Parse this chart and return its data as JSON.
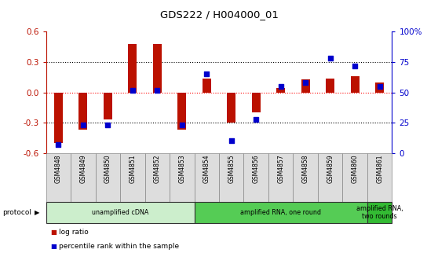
{
  "title": "GDS222 / H004000_01",
  "samples": [
    "GSM4848",
    "GSM4849",
    "GSM4850",
    "GSM4851",
    "GSM4852",
    "GSM4853",
    "GSM4854",
    "GSM4855",
    "GSM4856",
    "GSM4857",
    "GSM4858",
    "GSM4859",
    "GSM4860",
    "GSM4861"
  ],
  "log_ratio": [
    -0.5,
    -0.37,
    -0.27,
    0.48,
    0.48,
    -0.37,
    0.14,
    -0.3,
    -0.2,
    0.04,
    0.13,
    0.14,
    0.16,
    0.1
  ],
  "percentile": [
    7,
    23,
    23,
    52,
    52,
    23,
    65,
    10,
    28,
    55,
    58,
    78,
    72,
    55
  ],
  "ylim_left": [
    -0.6,
    0.6
  ],
  "ylim_right": [
    0,
    100
  ],
  "bar_color": "#bb1100",
  "dot_color": "#0000cc",
  "protocol_groups": [
    {
      "label": "unamplified cDNA",
      "start": 0,
      "end": 5,
      "color": "#cceecc"
    },
    {
      "label": "amplified RNA, one round",
      "start": 6,
      "end": 12,
      "color": "#55cc55"
    },
    {
      "label": "amplified RNA,\ntwo rounds",
      "start": 13,
      "end": 13,
      "color": "#33bb33"
    }
  ],
  "left_yticks": [
    -0.6,
    -0.3,
    0.0,
    0.3,
    0.6
  ],
  "right_yticks": [
    0,
    25,
    50,
    75,
    100
  ],
  "right_yticklabels": [
    "0",
    "25",
    "50",
    "75",
    "100%"
  ],
  "dotted_lines_black": [
    -0.3,
    0.3
  ],
  "dotted_line_red": 0.0,
  "legend_items": [
    {
      "label": "log ratio",
      "color": "#bb1100",
      "marker": "s"
    },
    {
      "label": "percentile rank within the sample",
      "color": "#0000cc",
      "marker": "s"
    }
  ],
  "bg_color": "#ffffff",
  "plot_bg_color": "#ffffff"
}
